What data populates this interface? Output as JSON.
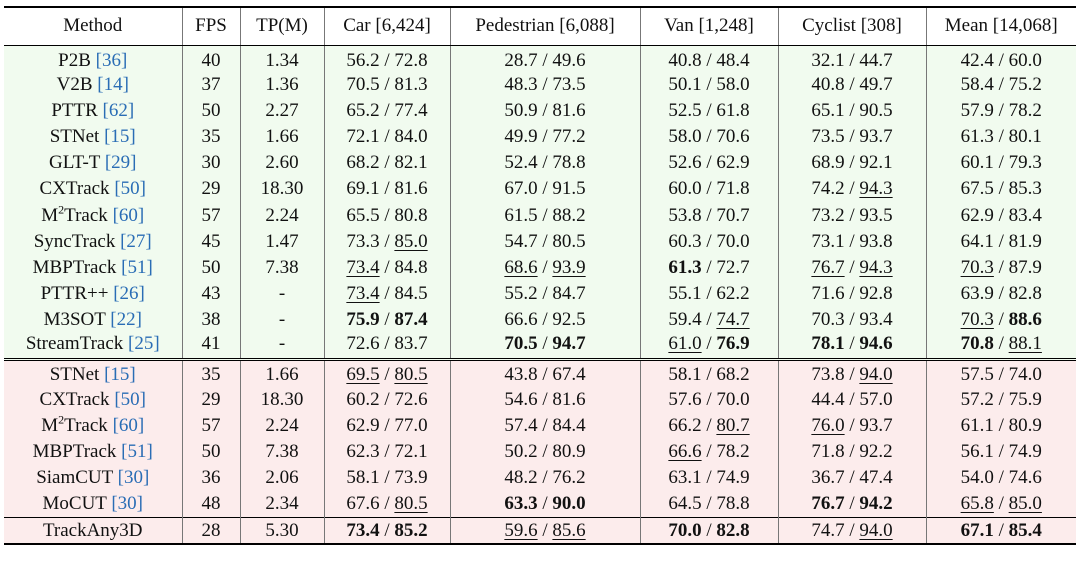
{
  "headers": [
    "Method",
    "FPS",
    "TP(M)",
    "Car [6,424]",
    "Pedestrian [6,088]",
    "Van [1,248]",
    "Cyclist [308]",
    "Mean [14,068]"
  ],
  "group1": [
    {
      "name": "P2B",
      "sup": "",
      "cite": "[36]",
      "fps": "40",
      "tp": "1.34",
      "car": [
        "56.2",
        "72.8"
      ],
      "ped": [
        "28.7",
        "49.6"
      ],
      "van": [
        "40.8",
        "48.4"
      ],
      "cyc": [
        "32.1",
        "44.7"
      ],
      "mean": [
        "42.4",
        "60.0"
      ]
    },
    {
      "name": "V2B",
      "sup": "",
      "cite": "[14]",
      "fps": "37",
      "tp": "1.36",
      "car": [
        "70.5",
        "81.3"
      ],
      "ped": [
        "48.3",
        "73.5"
      ],
      "van": [
        "50.1",
        "58.0"
      ],
      "cyc": [
        "40.8",
        "49.7"
      ],
      "mean": [
        "58.4",
        "75.2"
      ]
    },
    {
      "name": "PTTR",
      "sup": "",
      "cite": "[62]",
      "fps": "50",
      "tp": "2.27",
      "car": [
        "65.2",
        "77.4"
      ],
      "ped": [
        "50.9",
        "81.6"
      ],
      "van": [
        "52.5",
        "61.8"
      ],
      "cyc": [
        "65.1",
        "90.5"
      ],
      "mean": [
        "57.9",
        "78.2"
      ]
    },
    {
      "name": "STNet",
      "sup": "",
      "cite": "[15]",
      "fps": "35",
      "tp": "1.66",
      "car": [
        "72.1",
        "84.0"
      ],
      "ped": [
        "49.9",
        "77.2"
      ],
      "van": [
        "58.0",
        "70.6"
      ],
      "cyc": [
        "73.5",
        "93.7"
      ],
      "mean": [
        "61.3",
        "80.1"
      ]
    },
    {
      "name": "GLT-T",
      "sup": "",
      "cite": "[29]",
      "fps": "30",
      "tp": "2.60",
      "car": [
        "68.2",
        "82.1"
      ],
      "ped": [
        "52.4",
        "78.8"
      ],
      "van": [
        "52.6",
        "62.9"
      ],
      "cyc": [
        "68.9",
        "92.1"
      ],
      "mean": [
        "60.1",
        "79.3"
      ]
    },
    {
      "name": "CXTrack",
      "sup": "",
      "cite": "[50]",
      "fps": "29",
      "tp": "18.30",
      "car": [
        "69.1",
        "81.6"
      ],
      "ped": [
        "67.0",
        "91.5"
      ],
      "van": [
        "60.0",
        "71.8"
      ],
      "cyc": [
        "74.2",
        "94.3u"
      ],
      "mean": [
        "67.5",
        "85.3"
      ]
    },
    {
      "name": "M",
      "sup": "2",
      "name2": "Track",
      "cite": "[60]",
      "fps": "57",
      "tp": "2.24",
      "car": [
        "65.5",
        "80.8"
      ],
      "ped": [
        "61.5",
        "88.2"
      ],
      "van": [
        "53.8",
        "70.7"
      ],
      "cyc": [
        "73.2",
        "93.5"
      ],
      "mean": [
        "62.9",
        "83.4"
      ]
    },
    {
      "name": "SyncTrack",
      "sup": "",
      "cite": "[27]",
      "fps": "45",
      "tp": "1.47",
      "car": [
        "73.3",
        "85.0u"
      ],
      "ped": [
        "54.7",
        "80.5"
      ],
      "van": [
        "60.3",
        "70.0"
      ],
      "cyc": [
        "73.1",
        "93.8"
      ],
      "mean": [
        "64.1",
        "81.9"
      ]
    },
    {
      "name": "MBPTrack",
      "sup": "",
      "cite": "[51]",
      "fps": "50",
      "tp": "7.38",
      "car": [
        "73.4u",
        "84.8"
      ],
      "ped": [
        "68.6u",
        "93.9u"
      ],
      "van": [
        "61.3b",
        "72.7"
      ],
      "cyc": [
        "76.7u",
        "94.3u"
      ],
      "mean": [
        "70.3u",
        "87.9"
      ]
    },
    {
      "name": "PTTR++",
      "sup": "",
      "cite": "[26]",
      "fps": "43",
      "tp": "-",
      "car": [
        "73.4u",
        "84.5"
      ],
      "ped": [
        "55.2",
        "84.7"
      ],
      "van": [
        "55.1",
        "62.2"
      ],
      "cyc": [
        "71.6",
        "92.8"
      ],
      "mean": [
        "63.9",
        "82.8"
      ]
    },
    {
      "name": "M3SOT",
      "sup": "",
      "cite": "[22]",
      "fps": "38",
      "tp": "-",
      "car": [
        "75.9b",
        "87.4b"
      ],
      "ped": [
        "66.6",
        "92.5"
      ],
      "van": [
        "59.4",
        "74.7u"
      ],
      "cyc": [
        "70.3",
        "93.4"
      ],
      "mean": [
        "70.3u",
        "88.6b"
      ]
    },
    {
      "name": "StreamTrack",
      "sup": "",
      "cite": "[25]",
      "fps": "41",
      "tp": "-",
      "car": [
        "72.6",
        "83.7"
      ],
      "ped": [
        "70.5b",
        "94.7b"
      ],
      "van": [
        "61.0u",
        "76.9b"
      ],
      "cyc": [
        "78.1b",
        "94.6b"
      ],
      "mean": [
        "70.8b",
        "88.1u"
      ]
    }
  ],
  "group2": [
    {
      "name": "STNet",
      "sup": "",
      "cite": "[15]",
      "fps": "35",
      "tp": "1.66",
      "car": [
        "69.5u",
        "80.5u"
      ],
      "ped": [
        "43.8",
        "67.4"
      ],
      "van": [
        "58.1",
        "68.2"
      ],
      "cyc": [
        "73.8",
        "94.0u"
      ],
      "mean": [
        "57.5",
        "74.0"
      ]
    },
    {
      "name": "CXTrack",
      "sup": "",
      "cite": "[50]",
      "fps": "29",
      "tp": "18.30",
      "car": [
        "60.2",
        "72.6"
      ],
      "ped": [
        "54.6",
        "81.6"
      ],
      "van": [
        "57.6",
        "70.0"
      ],
      "cyc": [
        "44.4",
        "57.0"
      ],
      "mean": [
        "57.2",
        "75.9"
      ]
    },
    {
      "name": "M",
      "sup": "2",
      "name2": "Track",
      "cite": "[60]",
      "fps": "57",
      "tp": "2.24",
      "car": [
        "62.9",
        "77.0"
      ],
      "ped": [
        "57.4",
        "84.4"
      ],
      "van": [
        "66.2",
        "80.7u"
      ],
      "cyc": [
        "76.0u",
        "93.7"
      ],
      "mean": [
        "61.1",
        "80.9"
      ]
    },
    {
      "name": "MBPTrack",
      "sup": "",
      "cite": "[51]",
      "fps": "50",
      "tp": "7.38",
      "car": [
        "62.3",
        "72.1"
      ],
      "ped": [
        "50.2",
        "80.9"
      ],
      "van": [
        "66.6u",
        "78.2"
      ],
      "cyc": [
        "71.8",
        "92.2"
      ],
      "mean": [
        "56.1",
        "74.9"
      ]
    },
    {
      "name": "SiamCUT",
      "sup": "",
      "cite": "[30]",
      "fps": "36",
      "tp": "2.06",
      "car": [
        "58.1",
        "73.9"
      ],
      "ped": [
        "48.2",
        "76.2"
      ],
      "van": [
        "63.1",
        "74.9"
      ],
      "cyc": [
        "36.7",
        "47.4"
      ],
      "mean": [
        "54.0",
        "74.6"
      ]
    },
    {
      "name": "MoCUT",
      "sup": "",
      "cite": "[30]",
      "fps": "48",
      "tp": "2.34",
      "car": [
        "67.6",
        "80.5u"
      ],
      "ped": [
        "63.3b",
        "90.0b"
      ],
      "van": [
        "64.5",
        "78.8"
      ],
      "cyc": [
        "76.7b",
        "94.2b"
      ],
      "mean": [
        "65.8u",
        "85.0u"
      ]
    },
    {
      "name": "TrackAny3D",
      "sup": "",
      "cite": "",
      "fps": "28",
      "tp": "5.30",
      "car": [
        "73.4b",
        "85.2b"
      ],
      "ped": [
        "59.6u",
        "85.6u"
      ],
      "van": [
        "70.0b",
        "82.8b"
      ],
      "cyc": [
        "74.7",
        "94.0u"
      ],
      "mean": [
        "67.1b",
        "85.4b"
      ],
      "ours": true
    }
  ]
}
